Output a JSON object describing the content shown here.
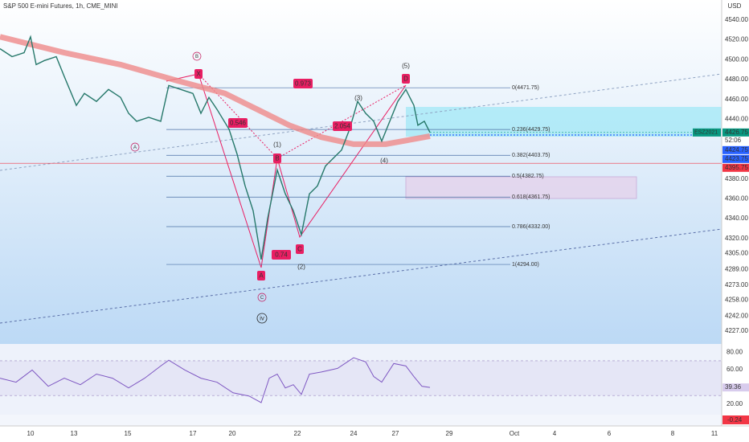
{
  "chart_data": {
    "type": "line",
    "title": "S&P 500 E-mini Futures, 1h, CME_MINI",
    "currency": "USD",
    "xlim": [
      0,
      179.6
    ],
    "ylim": [
      4214,
      4560
    ],
    "yticks": [
      {
        "value": 4540,
        "label": "4540.00"
      },
      {
        "value": 4520,
        "label": "4520.00"
      },
      {
        "value": 4500,
        "label": "4500.00"
      },
      {
        "value": 4480,
        "label": "4480.00"
      },
      {
        "value": 4460,
        "label": "4460.00"
      },
      {
        "value": 4440,
        "label": "4440.00"
      },
      {
        "value": 4380,
        "label": "4380.00"
      },
      {
        "value": 4360,
        "label": "4360.00"
      },
      {
        "value": 4340,
        "label": "4340.00"
      },
      {
        "value": 4320,
        "label": "4320.00"
      },
      {
        "value": 4305,
        "label": "4305.00"
      },
      {
        "value": 4289,
        "label": "4289.00"
      },
      {
        "value": 4273,
        "label": "4273.00"
      },
      {
        "value": 4258,
        "label": "4258.00"
      },
      {
        "value": 4242,
        "label": "4242.00"
      },
      {
        "value": 4227,
        "label": "4227.00"
      }
    ],
    "xticks": [
      {
        "value": 7.6,
        "label": "10"
      },
      {
        "value": 18.4,
        "label": "13"
      },
      {
        "value": 31.8,
        "label": "15"
      },
      {
        "value": 48,
        "label": "17"
      },
      {
        "value": 57.8,
        "label": "20"
      },
      {
        "value": 74,
        "label": "22"
      },
      {
        "value": 88,
        "label": "24"
      },
      {
        "value": 98.4,
        "label": "27"
      },
      {
        "value": 111.8,
        "label": "29"
      },
      {
        "value": 128,
        "label": "Oct"
      },
      {
        "value": 138,
        "label": "4"
      },
      {
        "value": 151.6,
        "label": "6"
      },
      {
        "value": 167.4,
        "label": "8"
      },
      {
        "value": 177.8,
        "label": "11"
      }
    ],
    "series": [
      {
        "color": "#26786a",
        "x": [
          0,
          3,
          6,
          7.6,
          9,
          11,
          14,
          16,
          19,
          21,
          24,
          27,
          30,
          32,
          34,
          37,
          40,
          42,
          45,
          48,
          50,
          52,
          54,
          57,
          59,
          61,
          63,
          65,
          66.6,
          69,
          71,
          73,
          75,
          77,
          79,
          81,
          83,
          85,
          87,
          89,
          91,
          93,
          95,
          97,
          99,
          101,
          103,
          104,
          105.6,
          107
        ],
        "values": [
          4511,
          4503,
          4507,
          4523,
          4495,
          4499,
          4503,
          4483,
          4454,
          4466,
          4458,
          4470,
          4462,
          4446,
          4438,
          4442,
          4438,
          4474,
          4470,
          4466,
          4446,
          4462,
          4450,
          4430,
          4405,
          4373,
          4348,
          4299,
          4340,
          4389,
          4365,
          4348,
          4324,
          4365,
          4373,
          4393,
          4401,
          4409,
          4430,
          4458,
          4446,
          4438,
          4418,
          4438,
          4458,
          4470,
          4454,
          4434,
          4438,
          4426.75
        ]
      },
      {
        "color": "#ef8a8a",
        "x": [
          0,
          16,
          30,
          44,
          56,
          64,
          72,
          80,
          88,
          96,
          107
        ],
        "values": [
          4523,
          4507,
          4495,
          4479,
          4466,
          4450,
          4434,
          4422,
          4415,
          4415,
          4423
        ]
      }
    ],
    "fib_levels": [
      {
        "label": "0(4471.75)",
        "value": 4471.75
      },
      {
        "label": "0.236(4429.75)",
        "value": 4429.75
      },
      {
        "label": "0.382(4403.75)",
        "value": 4403.75
      },
      {
        "label": "0.5(4382.75)",
        "value": 4382.75
      },
      {
        "label": "0.618(4361.75)",
        "value": 4361.75
      },
      {
        "label": "0.786(4332.00)",
        "value": 4332
      },
      {
        "label": "1(4294.00)",
        "value": 4294
      }
    ],
    "price_markers": [
      {
        "value": 4426.75,
        "color": "#089981"
      },
      {
        "value": 4424.75,
        "color": "#2962ff"
      },
      {
        "value": 4423.75,
        "color": "#2962ff"
      },
      {
        "value": 4395.75,
        "color": "#f23645"
      }
    ],
    "symbol_label": "ESZ2021",
    "countdown": "52:06",
    "annotations": [
      "X",
      "B",
      "A",
      "C",
      "D",
      "B",
      "A",
      "C",
      "iv",
      "(1)",
      "(2)",
      "(3)",
      "(4)",
      "(5)",
      "0.973",
      "0.546",
      "2.054",
      "0.74"
    ],
    "rsi": {
      "ylim": [
        8,
        89.4
      ],
      "yticks": [
        {
          "value": 80,
          "label": "80.00"
        },
        {
          "value": 60,
          "label": "60.00"
        },
        {
          "value": 20,
          "label": "20.00"
        }
      ],
      "bands": [
        70,
        30
      ],
      "color": "#7e57c2",
      "x": [
        0,
        4,
        8,
        12,
        16,
        20,
        24,
        28,
        32,
        36,
        40,
        42,
        46,
        50,
        54,
        58,
        62,
        65,
        67,
        69,
        71,
        73,
        75,
        77,
        80,
        84,
        88,
        91,
        93,
        95,
        98,
        101,
        103,
        105,
        107
      ],
      "values": [
        50,
        45.4,
        59.4,
        40.7,
        50,
        42.5,
        54.7,
        50,
        38.8,
        50,
        64.1,
        70.7,
        59.4,
        50,
        45.4,
        33.2,
        29.4,
        21.9,
        50,
        54.7,
        38.8,
        42.5,
        31.3,
        54.7,
        57.1,
        61.3,
        73.5,
        68.8,
        51.9,
        45.4,
        66.9,
        64.1,
        51.9,
        40.7,
        39.36
      ]
    },
    "macd_value": -0.24
  }
}
